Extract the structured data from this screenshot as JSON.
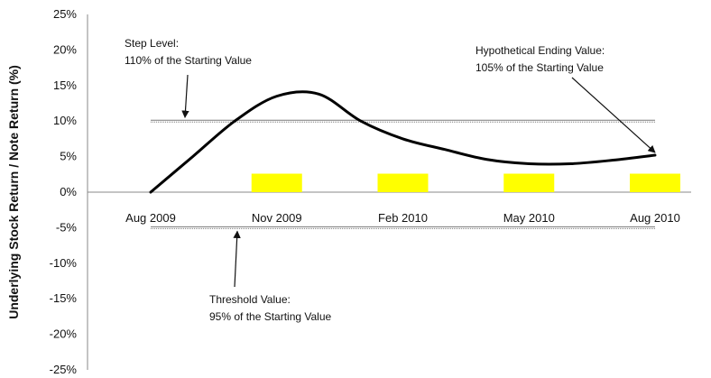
{
  "chart_data": {
    "type": "line",
    "title": "",
    "xlabel": "",
    "ylabel": "Underlying Stock Return / Note Return (%)",
    "ylim": [
      -25,
      25
    ],
    "y_ticks": [
      25,
      20,
      15,
      10,
      5,
      0,
      -5,
      -10,
      -15,
      -20,
      -25
    ],
    "y_tick_labels": [
      "25%",
      "20%",
      "15%",
      "10%",
      "5%",
      "0%",
      "-5%",
      "-10%",
      "-15%",
      "-20%",
      "-25%"
    ],
    "x_ticks": [
      0,
      3,
      6,
      9,
      12
    ],
    "x_tick_labels": [
      "Aug 2009",
      "Nov 2009",
      "Feb 2010",
      "May 2010",
      "Aug 2010"
    ],
    "series": [
      {
        "x": [
          0,
          1,
          2,
          3,
          4,
          5,
          6,
          7,
          8,
          9,
          10,
          11,
          12
        ],
        "values": [
          0,
          5,
          10,
          13.5,
          13.8,
          10,
          7.5,
          6,
          4.6,
          4,
          4,
          4.5,
          5.2
        ],
        "color": "#000000"
      }
    ],
    "reference_lines": [
      {
        "y": 10,
        "color": "#7a7a7a"
      },
      {
        "y": -5,
        "color": "#7a7a7a"
      }
    ],
    "bars": [
      {
        "x": 3,
        "y": 2.6,
        "color": "#ffff00"
      },
      {
        "x": 6,
        "y": 2.6,
        "color": "#ffff00"
      },
      {
        "x": 9,
        "y": 2.6,
        "color": "#ffff00"
      },
      {
        "x": 12,
        "y": 2.6,
        "color": "#ffff00"
      }
    ],
    "annotations": [
      {
        "lines": [
          "Step Level:",
          "110% of the Starting Value"
        ],
        "arrow_x": 1.1,
        "arrow_y": 10
      },
      {
        "lines": [
          "Hypothetical Ending Value:",
          "105% of the Starting Value"
        ],
        "arrow_x": 12,
        "arrow_y": 5.2
      },
      {
        "lines": [
          "Threshold Value:",
          "95% of the Starting Value"
        ],
        "arrow_x": 2.9,
        "arrow_y": -5
      }
    ]
  }
}
